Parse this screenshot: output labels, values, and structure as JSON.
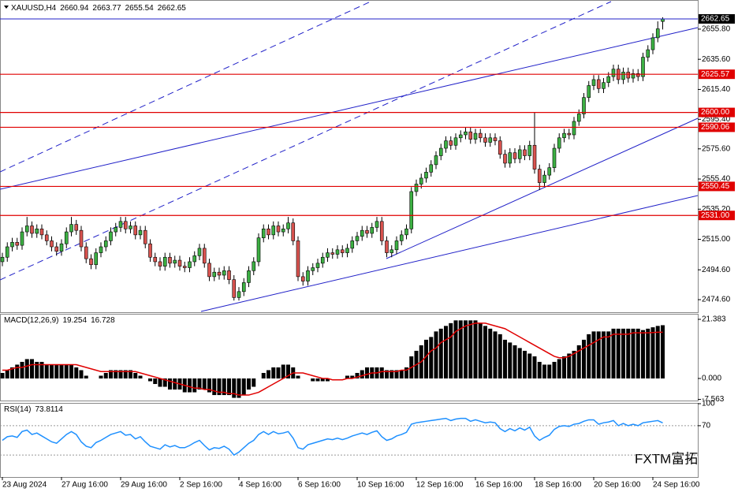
{
  "chart_data": [
    {
      "type": "candlestick",
      "symbol": "XAUUSD,H4",
      "watermark": "FXTM富拓",
      "categories": [
        "23 Aug 2024",
        null,
        null,
        null,
        null,
        null,
        null,
        null,
        null,
        null,
        null,
        null,
        "27 Aug 16:00",
        null,
        null,
        null,
        null,
        null,
        null,
        null,
        null,
        null,
        null,
        null,
        "29 Aug 16:00",
        null,
        null,
        null,
        null,
        null,
        null,
        null,
        null,
        null,
        null,
        null,
        "2 Sep 16:00",
        null,
        null,
        null,
        null,
        null,
        null,
        null,
        null,
        null,
        null,
        null,
        "4 Sep 16:00",
        null,
        null,
        null,
        null,
        null,
        null,
        null,
        null,
        null,
        null,
        null,
        "6 Sep 16:00",
        null,
        null,
        null,
        null,
        null,
        null,
        null,
        null,
        null,
        null,
        null,
        "10 Sep 16:00",
        null,
        null,
        null,
        null,
        null,
        null,
        null,
        null,
        null,
        null,
        null,
        "12 Sep 16:00",
        null,
        null,
        null,
        null,
        null,
        null,
        null,
        null,
        null,
        null,
        null,
        "16 Sep 16:00",
        null,
        null,
        null,
        null,
        null,
        null,
        null,
        null,
        null,
        null,
        null,
        "18 Sep 16:00",
        null,
        null,
        null,
        null,
        null,
        null,
        null,
        null,
        null,
        null,
        null,
        "20 Sep 16:00",
        null,
        null,
        null,
        null,
        null,
        null,
        null,
        null,
        null,
        null,
        null,
        "24 Sep 16:00",
        null,
        null
      ],
      "open": [
        2500,
        2503,
        2510,
        2513,
        2511,
        2520,
        2524,
        2519,
        2522,
        2518,
        2514,
        2510,
        2507,
        2512,
        2520,
        2525,
        2521,
        2510,
        2502,
        2498,
        2506,
        2510,
        2514,
        2520,
        2523,
        2527,
        2522,
        2524,
        2518,
        2521,
        2512,
        2503,
        2500,
        2497,
        2503,
        2499,
        2501,
        2497,
        2496,
        2500,
        2504,
        2509,
        2499,
        2490,
        2493,
        2491,
        2494,
        2488,
        2476,
        2480,
        2486,
        2494,
        2500,
        2516,
        2522,
        2518,
        2524,
        2520,
        2522,
        2526,
        2514,
        2490,
        2487,
        2494,
        2496,
        2499,
        2503,
        2506,
        2505,
        2508,
        2506,
        2509,
        2514,
        2517,
        2521,
        2519,
        2523,
        2527,
        2514,
        2506,
        2508,
        2514,
        2518,
        2522,
        2547,
        2552,
        2556,
        2560,
        2565,
        2571,
        2576,
        2581,
        2578,
        2583,
        2585,
        2587,
        2582,
        2586,
        2583,
        2580,
        2583,
        2581,
        2572,
        2566,
        2573,
        2569,
        2575,
        2571,
        2578,
        2562,
        2553,
        2558,
        2563,
        2576,
        2583,
        2586,
        2585,
        2594,
        2599,
        2610,
        2618,
        2622,
        2616,
        2620,
        2624,
        2629,
        2622,
        2627,
        2623,
        2626,
        2624,
        2637,
        2642,
        2650,
        2660.94
      ],
      "high": [
        2506,
        2513,
        2516,
        2516,
        2523,
        2530,
        2527,
        2525,
        2525,
        2521,
        2517,
        2513,
        2515,
        2523,
        2530,
        2528,
        2524,
        2513,
        2505,
        2509,
        2513,
        2517,
        2523,
        2526,
        2530,
        2530,
        2527,
        2527,
        2524,
        2524,
        2515,
        2506,
        2503,
        2506,
        2506,
        2504,
        2504,
        2500,
        2503,
        2507,
        2512,
        2512,
        2502,
        2496,
        2496,
        2497,
        2497,
        2491,
        2483,
        2489,
        2497,
        2503,
        2519,
        2525,
        2525,
        2527,
        2527,
        2525,
        2530,
        2529,
        2517,
        2493,
        2497,
        2499,
        2502,
        2506,
        2509,
        2509,
        2511,
        2511,
        2512,
        2517,
        2520,
        2524,
        2524,
        2526,
        2530,
        2530,
        2517,
        2511,
        2517,
        2521,
        2525,
        2550,
        2555,
        2559,
        2563,
        2568,
        2574,
        2579,
        2584,
        2584,
        2586,
        2588,
        2590,
        2590,
        2589,
        2589,
        2586,
        2586,
        2586,
        2584,
        2575,
        2576,
        2576,
        2578,
        2578,
        2581,
        2600,
        2565,
        2561,
        2566,
        2579,
        2586,
        2589,
        2589,
        2597,
        2602,
        2613,
        2621,
        2625,
        2625,
        2623,
        2627,
        2632,
        2632,
        2630,
        2630,
        2629,
        2629,
        2640,
        2645,
        2653,
        2661,
        2663.77
      ],
      "low": [
        2497,
        2500,
        2507,
        2508,
        2508,
        2517,
        2516,
        2516,
        2515,
        2511,
        2507,
        2504,
        2504,
        2509,
        2517,
        2518,
        2507,
        2499,
        2495,
        2495,
        2503,
        2507,
        2511,
        2517,
        2520,
        2519,
        2519,
        2515,
        2515,
        2509,
        2500,
        2497,
        2494,
        2494,
        2496,
        2496,
        2494,
        2493,
        2493,
        2497,
        2501,
        2496,
        2487,
        2487,
        2488,
        2488,
        2485,
        2474,
        2474,
        2477,
        2483,
        2491,
        2497,
        2513,
        2515,
        2515,
        2517,
        2517,
        2519,
        2511,
        2487,
        2484,
        2484,
        2491,
        2493,
        2496,
        2500,
        2502,
        2502,
        2503,
        2503,
        2506,
        2511,
        2514,
        2516,
        2516,
        2520,
        2511,
        2503,
        2503,
        2505,
        2511,
        2515,
        2519,
        2544,
        2549,
        2553,
        2557,
        2562,
        2568,
        2573,
        2575,
        2575,
        2580,
        2582,
        2579,
        2579,
        2580,
        2577,
        2577,
        2578,
        2569,
        2563,
        2563,
        2566,
        2566,
        2568,
        2568,
        2559,
        2548,
        2550,
        2555,
        2560,
        2573,
        2580,
        2582,
        2582,
        2591,
        2596,
        2607,
        2615,
        2613,
        2613,
        2617,
        2621,
        2619,
        2619,
        2620,
        2620,
        2621,
        2621,
        2634,
        2639,
        2647,
        2655.54
      ],
      "close": [
        2503,
        2510,
        2513,
        2511,
        2520,
        2524,
        2519,
        2522,
        2518,
        2514,
        2510,
        2507,
        2512,
        2520,
        2525,
        2521,
        2510,
        2502,
        2498,
        2506,
        2510,
        2514,
        2520,
        2523,
        2527,
        2522,
        2524,
        2518,
        2521,
        2512,
        2503,
        2500,
        2497,
        2503,
        2499,
        2501,
        2497,
        2496,
        2500,
        2504,
        2509,
        2499,
        2490,
        2493,
        2491,
        2494,
        2488,
        2476,
        2480,
        2486,
        2494,
        2500,
        2516,
        2522,
        2518,
        2524,
        2520,
        2522,
        2526,
        2514,
        2490,
        2487,
        2494,
        2496,
        2499,
        2503,
        2506,
        2505,
        2508,
        2506,
        2509,
        2514,
        2517,
        2521,
        2519,
        2523,
        2527,
        2514,
        2506,
        2508,
        2514,
        2518,
        2522,
        2547,
        2552,
        2556,
        2560,
        2565,
        2571,
        2576,
        2581,
        2578,
        2583,
        2585,
        2587,
        2582,
        2586,
        2583,
        2580,
        2583,
        2581,
        2572,
        2566,
        2573,
        2569,
        2575,
        2571,
        2578,
        2562,
        2553,
        2558,
        2563,
        2576,
        2583,
        2586,
        2585,
        2594,
        2599,
        2610,
        2618,
        2622,
        2616,
        2620,
        2624,
        2629,
        2622,
        2627,
        2623,
        2626,
        2624,
        2637,
        2642,
        2650,
        2656,
        2662.65
      ],
      "ylim": [
        2466.7,
        2665.8
      ],
      "yticks": [
        {
          "value": 2655.8,
          "label": "2655.80"
        },
        {
          "value": 2635.6,
          "label": "2635.60"
        },
        {
          "value": 2615.4,
          "label": "2615.40"
        },
        {
          "value": 2595.4,
          "label": "2595.40"
        },
        {
          "value": 2575.6,
          "label": "2575.60"
        },
        {
          "value": 2555.4,
          "label": "2555.40"
        },
        {
          "value": 2535.2,
          "label": "2535.20"
        },
        {
          "value": 2515,
          "label": "2515.00"
        },
        {
          "value": 2494.6,
          "label": "2494.60"
        },
        {
          "value": 2474.6,
          "label": "2474.60"
        }
      ],
      "levels": [
        2625.57,
        {
          "value": 2600,
          "label": "2600.00"
        },
        2590.06,
        2550.45,
        {
          "value": 2531,
          "label": "2531.00"
        }
      ],
      "up_color": "#3cb043",
      "down_color": "#d9534f",
      "level_color": "#e00000",
      "price_line_color": "#2020c8"
    },
    {
      "type": "macd",
      "title": "MACD(12,26,9)",
      "histogram": [
        2,
        3,
        4,
        5,
        6,
        7,
        7,
        6,
        6,
        5,
        5,
        5,
        5,
        5,
        5,
        4,
        3,
        1,
        0,
        0,
        1,
        2,
        3,
        3,
        3,
        3,
        3,
        2,
        1,
        0,
        -1,
        -2,
        -3,
        -3,
        -4,
        -4,
        -4,
        -5,
        -5,
        -5,
        -4,
        -4,
        -5,
        -6,
        -6,
        -6,
        -6,
        -7,
        -7,
        -6,
        -4,
        -3,
        0,
        2,
        3,
        4,
        4,
        5,
        5,
        4,
        1,
        0,
        0,
        -1,
        -1,
        -1,
        -1,
        0,
        0,
        0,
        1,
        1,
        2,
        3,
        4,
        4,
        4,
        4,
        3,
        3,
        3,
        3,
        4,
        8,
        10,
        12,
        14,
        15,
        17,
        18,
        19,
        20,
        21,
        21,
        21,
        21,
        21,
        20,
        19,
        18,
        17,
        16,
        14,
        13,
        12,
        11,
        10,
        9,
        8,
        6,
        5,
        5,
        6,
        7,
        8,
        9,
        10,
        12,
        14,
        16,
        17,
        17,
        17,
        17,
        18,
        18,
        18,
        18,
        18,
        18,
        17.5,
        18,
        18.5,
        19,
        19.254
      ],
      "signal": [
        3,
        3,
        3.5,
        4,
        4,
        4.5,
        5,
        5,
        5,
        5,
        5,
        5,
        5,
        5,
        5,
        5,
        4.5,
        4,
        3.5,
        3,
        2.5,
        2.5,
        2.5,
        2.5,
        2.5,
        2.5,
        2.5,
        2.5,
        2,
        1.5,
        1,
        0.5,
        0,
        -0.5,
        -1,
        -1.5,
        -2,
        -2.5,
        -3,
        -3.5,
        -3.5,
        -4,
        -4,
        -4.5,
        -5,
        -5,
        -5.5,
        -5.5,
        -6,
        -6,
        -6,
        -5.5,
        -5,
        -4,
        -3,
        -2,
        -1,
        0,
        1,
        2,
        2,
        2,
        1.5,
        1,
        0.5,
        0,
        0,
        -0.5,
        -0.5,
        -0.5,
        0,
        0,
        0.5,
        1,
        1.5,
        2,
        2,
        2.5,
        2.5,
        2.5,
        2.5,
        3,
        3,
        4,
        5,
        6,
        8,
        10,
        11,
        13,
        14,
        15,
        17,
        18,
        19,
        19.5,
        20,
        20,
        20,
        19.5,
        19,
        18.5,
        18,
        17,
        16,
        15,
        14,
        13,
        12,
        11,
        10,
        9,
        8,
        7.5,
        7.5,
        8,
        9,
        10,
        11,
        12,
        13,
        14,
        15,
        15,
        16,
        16,
        16,
        16,
        16.5,
        16.5,
        16.5,
        16.5,
        16.6,
        16.7,
        16.728
      ],
      "ylim": [
        -7.98,
        23.38
      ],
      "yticks": [
        21.383,
        {
          "value": 0,
          "label": "0.000"
        },
        -7.563
      ],
      "color": "#000000",
      "signal_color": "#e00000"
    },
    {
      "type": "rsi",
      "title": "RSI(14)",
      "values": [
        50,
        55,
        56,
        54,
        62,
        64,
        58,
        60,
        56,
        52,
        48,
        46,
        52,
        58,
        62,
        58,
        48,
        42,
        40,
        47,
        50,
        54,
        58,
        60,
        62,
        57,
        58,
        52,
        55,
        48,
        42,
        40,
        38,
        44,
        41,
        43,
        40,
        40,
        43,
        47,
        50,
        43,
        37,
        40,
        39,
        42,
        38,
        30,
        34,
        40,
        46,
        50,
        58,
        62,
        58,
        62,
        59,
        60,
        62,
        53,
        40,
        38,
        44,
        46,
        48,
        50,
        52,
        51,
        53,
        51,
        53,
        56,
        58,
        60,
        58,
        61,
        63,
        55,
        50,
        52,
        56,
        58,
        61,
        72,
        74,
        75,
        76,
        77,
        78,
        79,
        80,
        77,
        79,
        80,
        80,
        76,
        78,
        76,
        74,
        75,
        74,
        66,
        62,
        66,
        63,
        67,
        64,
        68,
        56,
        50,
        54,
        57,
        65,
        69,
        70,
        69,
        72,
        73,
        76,
        78,
        78,
        72,
        74,
        75,
        77,
        70,
        73,
        70,
        72,
        70,
        74,
        75,
        76,
        77,
        73.8114
      ],
      "ylim": [
        0,
        100
      ],
      "yticks": [
        100,
        70
      ],
      "levels": [
        70,
        30
      ],
      "color": "#1e90ff"
    }
  ]
}
